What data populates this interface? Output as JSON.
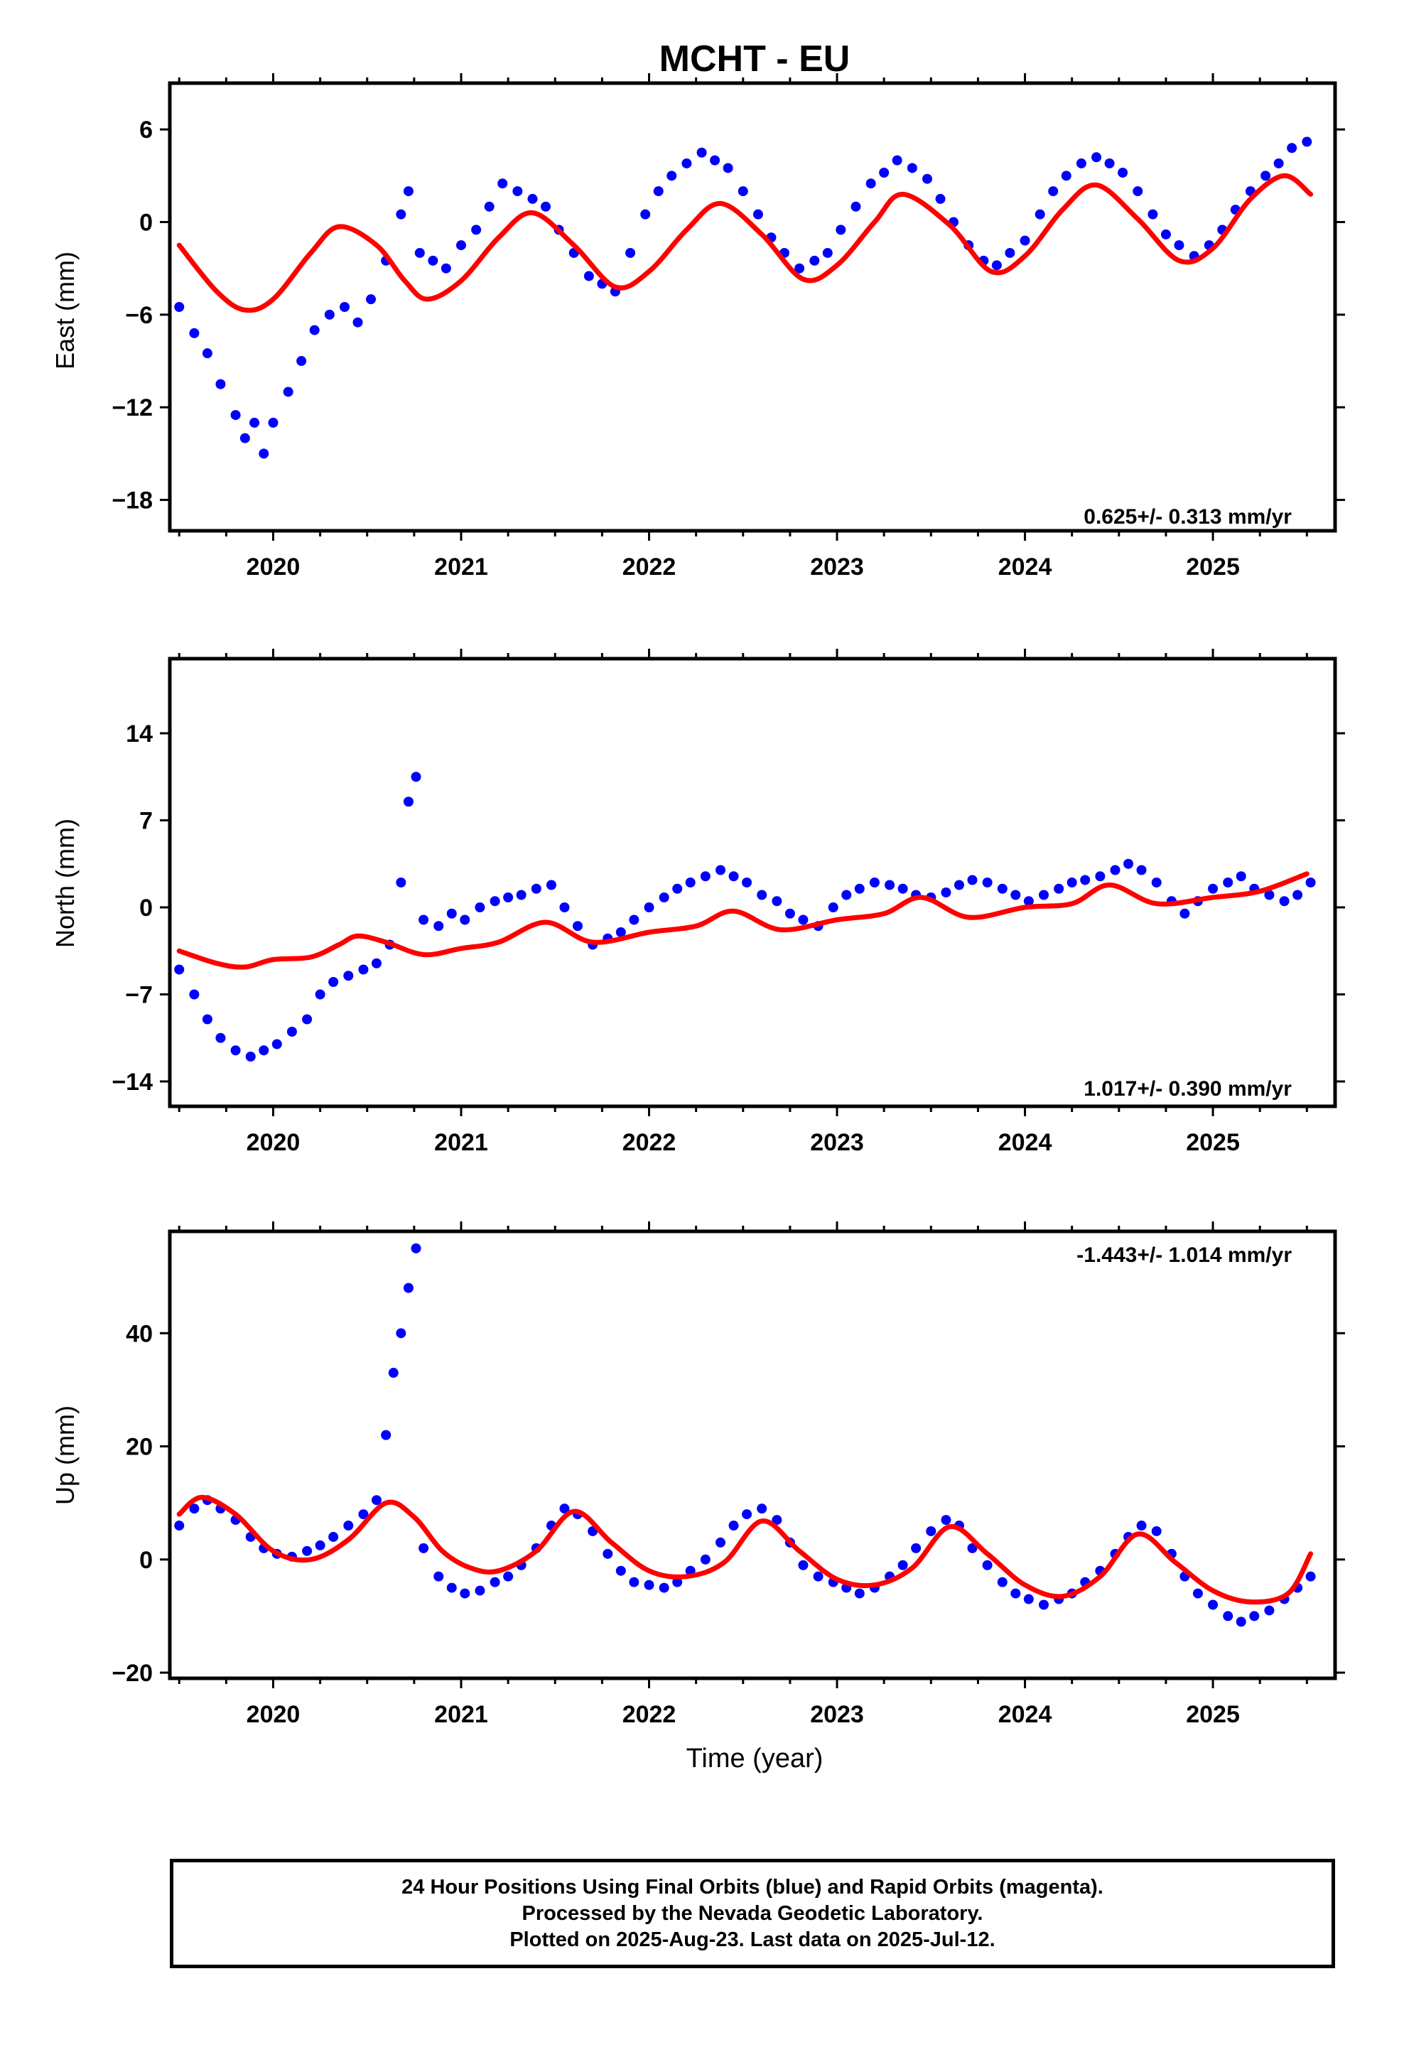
{
  "chart_data": {
    "title": "MCHT - EU",
    "type": "scatter",
    "xlabel": "Time (year)",
    "xlim": [
      2019.45,
      2025.65
    ],
    "xticks": [
      2020,
      2021,
      2022,
      2023,
      2024,
      2025
    ],
    "colors": {
      "points": "#0000ff",
      "fit": "#ff0000"
    },
    "panels": [
      {
        "name": "East",
        "ylabel": "East (mm)",
        "ylim": [
          -20,
          9
        ],
        "yticks": [
          -18,
          -12,
          -6,
          0,
          6
        ],
        "yticklabels": [
          "−18",
          "−12",
          "−6",
          "0",
          "6"
        ],
        "rate_label": "0.625+/- 0.313 mm/yr",
        "rate_position": "bottom-right",
        "fit": {
          "x": [
            2019.5,
            2019.7,
            2019.85,
            2020.0,
            2020.2,
            2020.35,
            2020.55,
            2020.7,
            2020.82,
            2021.0,
            2021.2,
            2021.38,
            2021.6,
            2021.82,
            2022.0,
            2022.2,
            2022.38,
            2022.6,
            2022.82,
            2023.0,
            2023.2,
            2023.35,
            2023.6,
            2023.82,
            2024.0,
            2024.2,
            2024.38,
            2024.6,
            2024.82,
            2025.0,
            2025.2,
            2025.38,
            2025.52
          ],
          "y": [
            -1.5,
            -4.5,
            -5.7,
            -5.0,
            -2.0,
            -0.3,
            -1.5,
            -3.8,
            -5.0,
            -3.8,
            -1.0,
            0.6,
            -1.5,
            -4.2,
            -3.2,
            -0.5,
            1.2,
            -0.8,
            -3.7,
            -2.8,
            0.0,
            1.8,
            -0.2,
            -3.2,
            -2.2,
            0.8,
            2.4,
            0.2,
            -2.5,
            -1.7,
            1.5,
            3.0,
            1.8
          ]
        },
        "points": {
          "x": [
            2019.5,
            2019.58,
            2019.65,
            2019.72,
            2019.8,
            2019.85,
            2019.9,
            2019.95,
            2020.0,
            2020.08,
            2020.15,
            2020.22,
            2020.3,
            2020.38,
            2020.45,
            2020.52,
            2020.6,
            2020.68,
            2020.72,
            2020.78,
            2020.85,
            2020.92,
            2021.0,
            2021.08,
            2021.15,
            2021.22,
            2021.3,
            2021.38,
            2021.45,
            2021.52,
            2021.6,
            2021.68,
            2021.75,
            2021.82,
            2021.9,
            2021.98,
            2022.05,
            2022.12,
            2022.2,
            2022.28,
            2022.35,
            2022.42,
            2022.5,
            2022.58,
            2022.65,
            2022.72,
            2022.8,
            2022.88,
            2022.95,
            2023.02,
            2023.1,
            2023.18,
            2023.25,
            2023.32,
            2023.4,
            2023.48,
            2023.55,
            2023.62,
            2023.7,
            2023.78,
            2023.85,
            2023.92,
            2024.0,
            2024.08,
            2024.15,
            2024.22,
            2024.3,
            2024.38,
            2024.45,
            2024.52,
            2024.6,
            2024.68,
            2024.75,
            2024.82,
            2024.9,
            2024.98,
            2025.05,
            2025.12,
            2025.2,
            2025.28,
            2025.35,
            2025.42,
            2025.5
          ],
          "y": [
            -5.5,
            -7.2,
            -8.5,
            -10.5,
            -12.5,
            -14.0,
            -13.0,
            -15.0,
            -13.0,
            -11.0,
            -9.0,
            -7.0,
            -6.0,
            -5.5,
            -6.5,
            -5.0,
            -2.5,
            0.5,
            2.0,
            -2.0,
            -2.5,
            -3.0,
            -1.5,
            -0.5,
            1.0,
            2.5,
            2.0,
            1.5,
            1.0,
            -0.5,
            -2.0,
            -3.5,
            -4.0,
            -4.5,
            -2.0,
            0.5,
            2.0,
            3.0,
            3.8,
            4.5,
            4.0,
            3.5,
            2.0,
            0.5,
            -1.0,
            -2.0,
            -3.0,
            -2.5,
            -2.0,
            -0.5,
            1.0,
            2.5,
            3.2,
            4.0,
            3.5,
            2.8,
            1.5,
            0.0,
            -1.5,
            -2.5,
            -2.8,
            -2.0,
            -1.2,
            0.5,
            2.0,
            3.0,
            3.8,
            4.2,
            3.8,
            3.2,
            2.0,
            0.5,
            -0.8,
            -1.5,
            -2.2,
            -1.5,
            -0.5,
            0.8,
            2.0,
            3.0,
            3.8,
            4.8,
            5.2
          ]
        }
      },
      {
        "name": "North",
        "ylabel": "North (mm)",
        "ylim": [
          -16,
          20
        ],
        "yticks": [
          -14,
          -7,
          0,
          7,
          14
        ],
        "yticklabels": [
          "−14",
          "−7",
          "0",
          "7",
          "14"
        ],
        "rate_label": "1.017+/- 0.390 mm/yr",
        "rate_position": "bottom-right",
        "fit": {
          "x": [
            2019.5,
            2019.7,
            2019.85,
            2020.0,
            2020.2,
            2020.35,
            2020.45,
            2020.6,
            2020.8,
            2021.0,
            2021.2,
            2021.45,
            2021.7,
            2022.0,
            2022.25,
            2022.45,
            2022.7,
            2023.0,
            2023.25,
            2023.45,
            2023.7,
            2024.0,
            2024.25,
            2024.45,
            2024.7,
            2025.0,
            2025.25,
            2025.5
          ],
          "y": [
            -3.5,
            -4.5,
            -4.8,
            -4.2,
            -4.0,
            -3.0,
            -2.3,
            -2.8,
            -3.8,
            -3.3,
            -2.8,
            -1.2,
            -2.8,
            -2.0,
            -1.5,
            -0.3,
            -1.8,
            -1.0,
            -0.5,
            0.8,
            -0.8,
            0.0,
            0.3,
            1.8,
            0.3,
            0.8,
            1.3,
            2.7
          ]
        },
        "points": {
          "x": [
            2019.5,
            2019.58,
            2019.65,
            2019.72,
            2019.8,
            2019.88,
            2019.95,
            2020.02,
            2020.1,
            2020.18,
            2020.25,
            2020.32,
            2020.4,
            2020.48,
            2020.55,
            2020.62,
            2020.68,
            2020.72,
            2020.76,
            2020.8,
            2020.88,
            2020.95,
            2021.02,
            2021.1,
            2021.18,
            2021.25,
            2021.32,
            2021.4,
            2021.48,
            2021.55,
            2021.62,
            2021.7,
            2021.78,
            2021.85,
            2021.92,
            2022.0,
            2022.08,
            2022.15,
            2022.22,
            2022.3,
            2022.38,
            2022.45,
            2022.52,
            2022.6,
            2022.68,
            2022.75,
            2022.82,
            2022.9,
            2022.98,
            2023.05,
            2023.12,
            2023.2,
            2023.28,
            2023.35,
            2023.42,
            2023.5,
            2023.58,
            2023.65,
            2023.72,
            2023.8,
            2023.88,
            2023.95,
            2024.02,
            2024.1,
            2024.18,
            2024.25,
            2024.32,
            2024.4,
            2024.48,
            2024.55,
            2024.62,
            2024.7,
            2024.78,
            2024.85,
            2024.92,
            2025.0,
            2025.08,
            2025.15,
            2025.22,
            2025.3,
            2025.38,
            2025.45,
            2025.52
          ],
          "y": [
            -5.0,
            -7.0,
            -9.0,
            -10.5,
            -11.5,
            -12.0,
            -11.5,
            -11.0,
            -10.0,
            -9.0,
            -7.0,
            -6.0,
            -5.5,
            -5.0,
            -4.5,
            -3.0,
            2.0,
            8.5,
            10.5,
            -1.0,
            -1.5,
            -0.5,
            -1.0,
            0.0,
            0.5,
            0.8,
            1.0,
            1.5,
            1.8,
            0.0,
            -1.5,
            -3.0,
            -2.5,
            -2.0,
            -1.0,
            0.0,
            0.8,
            1.5,
            2.0,
            2.5,
            3.0,
            2.5,
            2.0,
            1.0,
            0.5,
            -0.5,
            -1.0,
            -1.5,
            0.0,
            1.0,
            1.5,
            2.0,
            1.8,
            1.5,
            1.0,
            0.8,
            1.2,
            1.8,
            2.2,
            2.0,
            1.5,
            1.0,
            0.5,
            1.0,
            1.5,
            2.0,
            2.2,
            2.5,
            3.0,
            3.5,
            3.0,
            2.0,
            0.5,
            -0.5,
            0.5,
            1.5,
            2.0,
            2.5,
            1.5,
            1.0,
            0.5,
            1.0,
            2.0
          ]
        }
      },
      {
        "name": "Up",
        "ylabel": "Up (mm)",
        "ylim": [
          -21,
          58
        ],
        "yticks": [
          -20,
          0,
          20,
          40
        ],
        "yticklabels": [
          "−20",
          "0",
          "20",
          "40"
        ],
        "rate_label": "-1.443+/- 1.014 mm/yr",
        "rate_position": "top-right",
        "fit": {
          "x": [
            2019.5,
            2019.62,
            2019.8,
            2020.0,
            2020.2,
            2020.4,
            2020.6,
            2020.75,
            2020.9,
            2021.05,
            2021.2,
            2021.4,
            2021.6,
            2021.8,
            2022.0,
            2022.2,
            2022.4,
            2022.6,
            2022.8,
            2023.0,
            2023.2,
            2023.4,
            2023.6,
            2023.8,
            2024.0,
            2024.2,
            2024.4,
            2024.6,
            2024.8,
            2025.0,
            2025.2,
            2025.4,
            2025.52
          ],
          "y": [
            8.0,
            11.0,
            8.0,
            1.5,
            0.0,
            3.5,
            10.0,
            7.5,
            1.5,
            -1.5,
            -2.0,
            1.5,
            8.5,
            3.0,
            -2.0,
            -3.0,
            -0.5,
            6.8,
            1.5,
            -3.5,
            -4.5,
            -1.5,
            5.8,
            1.0,
            -4.5,
            -6.5,
            -3.0,
            4.5,
            -0.5,
            -5.5,
            -7.5,
            -6.0,
            1.0
          ]
        },
        "points": {
          "x": [
            2019.5,
            2019.58,
            2019.65,
            2019.72,
            2019.8,
            2019.88,
            2019.95,
            2020.02,
            2020.1,
            2020.18,
            2020.25,
            2020.32,
            2020.4,
            2020.48,
            2020.55,
            2020.6,
            2020.64,
            2020.68,
            2020.72,
            2020.76,
            2020.8,
            2020.88,
            2020.95,
            2021.02,
            2021.1,
            2021.18,
            2021.25,
            2021.32,
            2021.4,
            2021.48,
            2021.55,
            2021.62,
            2021.7,
            2021.78,
            2021.85,
            2021.92,
            2022.0,
            2022.08,
            2022.15,
            2022.22,
            2022.3,
            2022.38,
            2022.45,
            2022.52,
            2022.6,
            2022.68,
            2022.75,
            2022.82,
            2022.9,
            2022.98,
            2023.05,
            2023.12,
            2023.2,
            2023.28,
            2023.35,
            2023.42,
            2023.5,
            2023.58,
            2023.65,
            2023.72,
            2023.8,
            2023.88,
            2023.95,
            2024.02,
            2024.1,
            2024.18,
            2024.25,
            2024.32,
            2024.4,
            2024.48,
            2024.55,
            2024.62,
            2024.7,
            2024.78,
            2024.85,
            2024.92,
            2025.0,
            2025.08,
            2025.15,
            2025.22,
            2025.3,
            2025.38,
            2025.45,
            2025.52
          ],
          "y": [
            6.0,
            9.0,
            10.5,
            9.0,
            7.0,
            4.0,
            2.0,
            1.0,
            0.5,
            1.5,
            2.5,
            4.0,
            6.0,
            8.0,
            10.5,
            22.0,
            33.0,
            40.0,
            48.0,
            55.0,
            2.0,
            -3.0,
            -5.0,
            -6.0,
            -5.5,
            -4.0,
            -3.0,
            -1.0,
            2.0,
            6.0,
            9.0,
            8.0,
            5.0,
            1.0,
            -2.0,
            -4.0,
            -4.5,
            -5.0,
            -4.0,
            -2.0,
            0.0,
            3.0,
            6.0,
            8.0,
            9.0,
            7.0,
            3.0,
            -1.0,
            -3.0,
            -4.0,
            -5.0,
            -6.0,
            -5.0,
            -3.0,
            -1.0,
            2.0,
            5.0,
            7.0,
            6.0,
            2.0,
            -1.0,
            -4.0,
            -6.0,
            -7.0,
            -8.0,
            -7.0,
            -6.0,
            -4.0,
            -2.0,
            1.0,
            4.0,
            6.0,
            5.0,
            1.0,
            -3.0,
            -6.0,
            -8.0,
            -10.0,
            -11.0,
            -10.0,
            -9.0,
            -7.0,
            -5.0,
            -3.0
          ]
        }
      }
    ]
  },
  "caption": {
    "line1": "24 Hour Positions Using Final Orbits (blue) and Rapid Orbits (magenta).",
    "line2": "Processed by the Nevada Geodetic Laboratory.",
    "line3": "Plotted on 2025-Aug-23. Last data on 2025-Jul-12."
  }
}
